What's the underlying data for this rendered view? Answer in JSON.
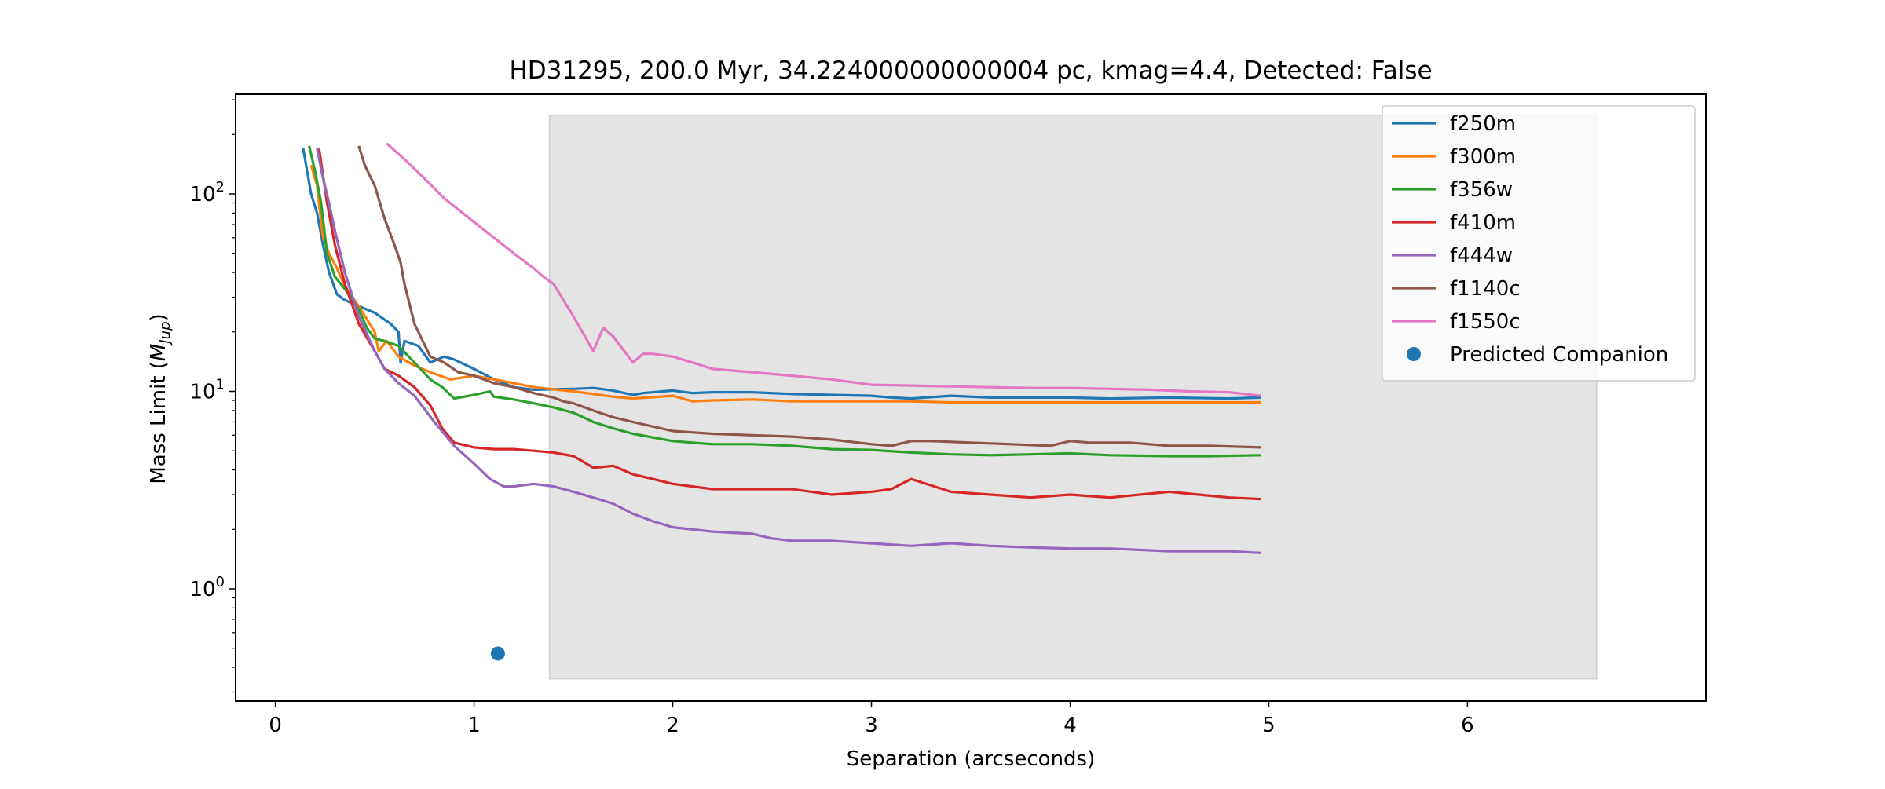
{
  "chart_data": {
    "type": "line",
    "title": "HD31295, 200.0 Myr, 34.224000000000004 pc, kmag=4.4, Detected: False",
    "xlabel": "Separation (arcseconds)",
    "ylabel_main": "Mass Limit (",
    "ylabel_var": "M",
    "ylabel_sub": "Jup",
    "ylabel_end": ")",
    "xlim": [
      -0.2,
      7.2
    ],
    "ylim": [
      0.27,
      320
    ],
    "yscale": "log",
    "x_ticks": [
      0,
      1,
      2,
      3,
      4,
      5,
      6
    ],
    "x_tick_labels": [
      "0",
      "1",
      "2",
      "3",
      "4",
      "5",
      "6"
    ],
    "y_ticks": [
      1,
      10,
      100
    ],
    "y_tick_labels": [
      {
        "base": "10",
        "exp": "0"
      },
      {
        "base": "10",
        "exp": "1"
      },
      {
        "base": "10",
        "exp": "2"
      }
    ],
    "grid": false,
    "legend_position": "top-right",
    "shaded_region": {
      "x": [
        1.38,
        6.65
      ],
      "y": [
        0.35,
        250
      ],
      "color": "#e4e4e4"
    },
    "series": [
      {
        "name": "f250m",
        "color": "#1f77b4",
        "x": [
          0.14,
          0.18,
          0.21,
          0.24,
          0.27,
          0.31,
          0.35,
          0.42,
          0.5,
          0.58,
          0.62,
          0.63,
          0.65,
          0.72,
          0.78,
          0.85,
          0.9,
          1.0,
          1.1,
          1.2,
          1.3,
          1.5,
          1.6,
          1.7,
          1.8,
          1.85,
          2.0,
          2.1,
          2.2,
          2.4,
          2.6,
          2.8,
          3.0,
          3.1,
          3.2,
          3.4,
          3.6,
          3.8,
          4.0,
          4.2,
          4.5,
          4.8,
          4.96
        ],
        "y": [
          170,
          100,
          80,
          55,
          40,
          31,
          29,
          27,
          25,
          22,
          20,
          14,
          18,
          17,
          14,
          15,
          14.5,
          13,
          11.5,
          10.5,
          10.2,
          10.3,
          10.4,
          10.1,
          9.6,
          9.8,
          10.1,
          9.8,
          9.9,
          9.9,
          9.7,
          9.6,
          9.5,
          9.3,
          9.2,
          9.5,
          9.3,
          9.3,
          9.3,
          9.2,
          9.3,
          9.2,
          9.3
        ]
      },
      {
        "name": "f300m",
        "color": "#ff7f0e",
        "x": [
          0.18,
          0.21,
          0.24,
          0.27,
          0.31,
          0.35,
          0.42,
          0.5,
          0.52,
          0.56,
          0.62,
          0.7,
          0.78,
          0.88,
          1.0,
          1.1,
          1.2,
          1.3,
          1.5,
          1.6,
          1.7,
          1.8,
          2.0,
          2.1,
          2.2,
          2.4,
          2.6,
          2.8,
          3.0,
          3.2,
          3.4,
          3.6,
          3.8,
          4.0,
          4.2,
          4.5,
          4.8,
          4.96
        ],
        "y": [
          140,
          110,
          60,
          50,
          42,
          34,
          27,
          20,
          16,
          18,
          15,
          13.5,
          12.5,
          11.5,
          12,
          11.5,
          11,
          10.5,
          10,
          9.7,
          9.4,
          9.2,
          9.5,
          8.9,
          9.0,
          9.1,
          8.9,
          8.9,
          8.9,
          8.9,
          8.8,
          8.8,
          8.8,
          8.8,
          8.8,
          8.8,
          8.8,
          8.8
        ]
      },
      {
        "name": "f356w",
        "color": "#2ca02c",
        "x": [
          0.17,
          0.2,
          0.23,
          0.26,
          0.3,
          0.35,
          0.42,
          0.46,
          0.5,
          0.55,
          0.62,
          0.7,
          0.78,
          0.84,
          0.9,
          1.0,
          1.08,
          1.1,
          1.2,
          1.3,
          1.4,
          1.5,
          1.6,
          1.7,
          1.8,
          2.0,
          2.2,
          2.4,
          2.6,
          2.8,
          3.0,
          3.2,
          3.4,
          3.6,
          3.8,
          4.0,
          4.2,
          4.5,
          4.7,
          4.96
        ],
        "y": [
          175,
          130,
          90,
          50,
          38,
          33,
          26,
          21,
          18.5,
          18,
          17,
          14,
          11.5,
          10.5,
          9.2,
          9.6,
          10,
          9.4,
          9.1,
          8.7,
          8.3,
          7.8,
          7,
          6.5,
          6.1,
          5.6,
          5.4,
          5.4,
          5.3,
          5.1,
          5.05,
          4.9,
          4.8,
          4.75,
          4.8,
          4.85,
          4.75,
          4.7,
          4.7,
          4.75
        ]
      },
      {
        "name": "f410m",
        "color": "#d62728",
        "x": [
          0.22,
          0.26,
          0.3,
          0.35,
          0.42,
          0.5,
          0.55,
          0.62,
          0.7,
          0.78,
          0.84,
          0.9,
          1.0,
          1.1,
          1.2,
          1.3,
          1.4,
          1.5,
          1.55,
          1.6,
          1.7,
          1.8,
          1.9,
          2.0,
          2.2,
          2.4,
          2.6,
          2.8,
          3.0,
          3.1,
          3.2,
          3.4,
          3.6,
          3.8,
          4.0,
          4.2,
          4.5,
          4.8,
          4.96
        ],
        "y": [
          170,
          90,
          55,
          35,
          22,
          16,
          13,
          12,
          10.5,
          8.5,
          6.5,
          5.5,
          5.2,
          5.1,
          5.1,
          5.0,
          4.9,
          4.7,
          4.4,
          4.1,
          4.2,
          3.8,
          3.6,
          3.4,
          3.2,
          3.2,
          3.2,
          3.0,
          3.1,
          3.2,
          3.6,
          3.1,
          3.0,
          2.9,
          3.0,
          2.9,
          3.1,
          2.9,
          2.85
        ]
      },
      {
        "name": "f444w",
        "color": "#9467bd",
        "x": [
          0.21,
          0.24,
          0.27,
          0.3,
          0.35,
          0.42,
          0.5,
          0.55,
          0.62,
          0.7,
          0.8,
          0.9,
          1.0,
          1.08,
          1.15,
          1.2,
          1.3,
          1.4,
          1.5,
          1.6,
          1.7,
          1.8,
          1.9,
          2.0,
          2.2,
          2.4,
          2.5,
          2.6,
          2.8,
          3.0,
          3.2,
          3.4,
          3.6,
          3.8,
          4.0,
          4.2,
          4.5,
          4.8,
          4.96
        ],
        "y": [
          170,
          120,
          90,
          65,
          40,
          24,
          16,
          13,
          11,
          9.5,
          7,
          5.3,
          4.3,
          3.6,
          3.3,
          3.3,
          3.4,
          3.3,
          3.1,
          2.9,
          2.7,
          2.4,
          2.2,
          2.05,
          1.95,
          1.9,
          1.8,
          1.75,
          1.75,
          1.7,
          1.65,
          1.7,
          1.65,
          1.62,
          1.6,
          1.6,
          1.55,
          1.55,
          1.52
        ]
      },
      {
        "name": "f1140c",
        "color": "#8c564b",
        "x": [
          0.42,
          0.45,
          0.5,
          0.55,
          0.6,
          0.63,
          0.65,
          0.7,
          0.78,
          0.85,
          0.92,
          1.0,
          1.1,
          1.2,
          1.3,
          1.4,
          1.45,
          1.5,
          1.6,
          1.7,
          1.8,
          2.0,
          2.2,
          2.4,
          2.6,
          2.8,
          3.0,
          3.1,
          3.2,
          3.3,
          3.5,
          3.7,
          3.9,
          4.0,
          4.1,
          4.3,
          4.5,
          4.7,
          4.96
        ],
        "y": [
          175,
          140,
          110,
          75,
          55,
          45,
          35,
          22,
          15,
          14,
          12.5,
          12,
          11,
          10.5,
          9.8,
          9.3,
          8.9,
          8.7,
          8.0,
          7.4,
          7.0,
          6.3,
          6.1,
          6.0,
          5.9,
          5.7,
          5.4,
          5.3,
          5.6,
          5.6,
          5.5,
          5.4,
          5.3,
          5.6,
          5.5,
          5.5,
          5.3,
          5.3,
          5.2
        ]
      },
      {
        "name": "f1550c",
        "color": "#e377c2",
        "x": [
          0.56,
          0.65,
          0.75,
          0.85,
          1.0,
          1.1,
          1.2,
          1.3,
          1.35,
          1.4,
          1.5,
          1.6,
          1.65,
          1.7,
          1.8,
          1.85,
          1.9,
          2.0,
          2.1,
          2.2,
          2.4,
          2.6,
          2.8,
          3.0,
          3.2,
          3.4,
          3.6,
          3.8,
          4.0,
          4.2,
          4.4,
          4.6,
          4.8,
          4.96
        ],
        "y": [
          180,
          150,
          120,
          95,
          72,
          60,
          50,
          42,
          38,
          35,
          24,
          16,
          21,
          19,
          14,
          15.5,
          15.5,
          15,
          14,
          13,
          12.5,
          12,
          11.5,
          10.8,
          10.7,
          10.6,
          10.5,
          10.4,
          10.4,
          10.3,
          10.2,
          10.0,
          9.9,
          9.5
        ]
      }
    ],
    "points": [
      {
        "name": "Predicted Companion",
        "color": "#1f77b4",
        "x": [
          1.12
        ],
        "y": [
          0.47
        ]
      }
    ]
  }
}
